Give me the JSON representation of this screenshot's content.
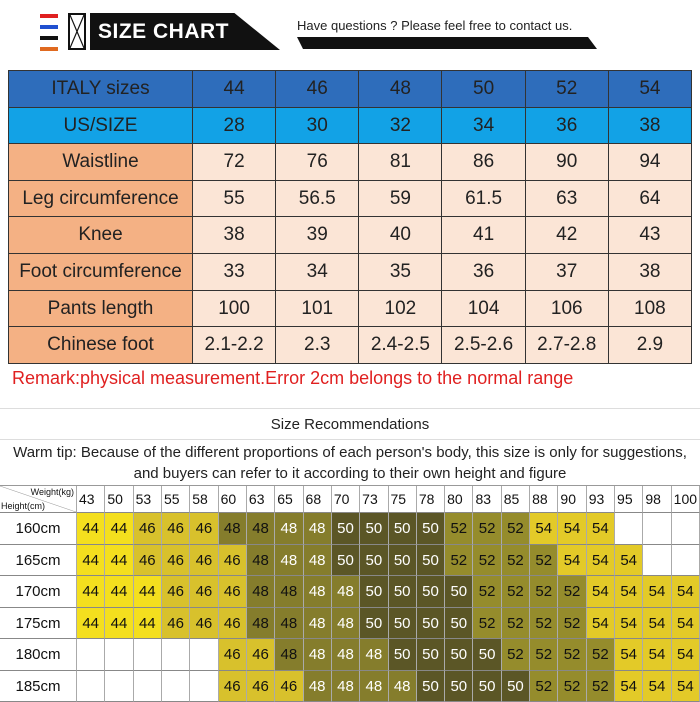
{
  "header": {
    "title": "SIZE CHART",
    "contact": "Have questions ? Please feel free to contact us.",
    "flag_colors": [
      "#e02020",
      "#2050d0",
      "#111111",
      "#e06a20"
    ]
  },
  "size_table": {
    "rows": [
      {
        "label": "ITALY sizes",
        "values": [
          "44",
          "46",
          "48",
          "50",
          "52",
          "54"
        ],
        "color": "#2e6dbb"
      },
      {
        "label": "US/SIZE",
        "values": [
          "28",
          "30",
          "32",
          "34",
          "36",
          "38"
        ],
        "color": "#12a2e6"
      },
      {
        "label": "Waistline",
        "values": [
          "72",
          "76",
          "81",
          "86",
          "90",
          "94"
        ]
      },
      {
        "label": "Leg circumference",
        "values": [
          "55",
          "56.5",
          "59",
          "61.5",
          "63",
          "64"
        ]
      },
      {
        "label": "Knee",
        "values": [
          "38",
          "39",
          "40",
          "41",
          "42",
          "43"
        ]
      },
      {
        "label": "Foot circumference",
        "values": [
          "33",
          "34",
          "35",
          "36",
          "37",
          "38"
        ]
      },
      {
        "label": "Pants length",
        "values": [
          "100",
          "101",
          "102",
          "104",
          "106",
          "108"
        ]
      },
      {
        "label": "Chinese foot",
        "values": [
          "2.1-2.2",
          "2.3",
          "2.4-2.5",
          "2.5-2.6",
          "2.7-2.8",
          "2.9"
        ]
      }
    ]
  },
  "remark": "Remark:physical measurement.Error 2cm belongs to the normal range",
  "recommendations": {
    "title": "Size Recommendations",
    "tip": "Warm tip: Because of the different proportions of each person's body, this size is only for suggestions, and buyers can refer to it according to their own height and figure",
    "corner_weight": "Weight(kg)",
    "corner_height": "Height(cm)",
    "weights": [
      "43",
      "50",
      "53",
      "55",
      "58",
      "60",
      "63",
      "65",
      "68",
      "70",
      "73",
      "75",
      "78",
      "80",
      "83",
      "85",
      "88",
      "90",
      "93",
      "95",
      "98",
      "100"
    ],
    "rows": [
      {
        "height": "160cm",
        "sizes": [
          "44",
          "44",
          "46",
          "46",
          "46",
          "48",
          "48",
          "48",
          "48",
          "50",
          "50",
          "50",
          "50",
          "52",
          "52",
          "52",
          "54",
          "54",
          "54",
          "",
          "",
          ""
        ]
      },
      {
        "height": "165cm",
        "sizes": [
          "44",
          "44",
          "46",
          "46",
          "46",
          "46",
          "48",
          "48",
          "48",
          "50",
          "50",
          "50",
          "50",
          "52",
          "52",
          "52",
          "52",
          "54",
          "54",
          "54",
          "",
          ""
        ]
      },
      {
        "height": "170cm",
        "sizes": [
          "44",
          "44",
          "44",
          "46",
          "46",
          "46",
          "48",
          "48",
          "48",
          "48",
          "50",
          "50",
          "50",
          "50",
          "52",
          "52",
          "52",
          "52",
          "54",
          "54",
          "54",
          "54"
        ]
      },
      {
        "height": "175cm",
        "sizes": [
          "44",
          "44",
          "44",
          "46",
          "46",
          "46",
          "48",
          "48",
          "48",
          "48",
          "50",
          "50",
          "50",
          "50",
          "52",
          "52",
          "52",
          "52",
          "54",
          "54",
          "54",
          "54"
        ]
      },
      {
        "height": "180cm",
        "sizes": [
          "",
          "",
          "",
          "",
          "",
          "46",
          "46",
          "48",
          "48",
          "48",
          "48",
          "50",
          "50",
          "50",
          "50",
          "52",
          "52",
          "52",
          "52",
          "54",
          "54",
          "54"
        ]
      },
      {
        "height": "185cm",
        "sizes": [
          "",
          "",
          "",
          "",
          "",
          "46",
          "46",
          "46",
          "48",
          "48",
          "48",
          "48",
          "50",
          "50",
          "50",
          "50",
          "52",
          "52",
          "52",
          "54",
          "54",
          "54"
        ]
      }
    ],
    "size_colors": {
      "44": "#f4df1e",
      "46": "#d8c12c",
      "48": "#857d2c",
      "50": "#5b5626",
      "52": "#958c2c",
      "54": "#e3ca28"
    }
  }
}
